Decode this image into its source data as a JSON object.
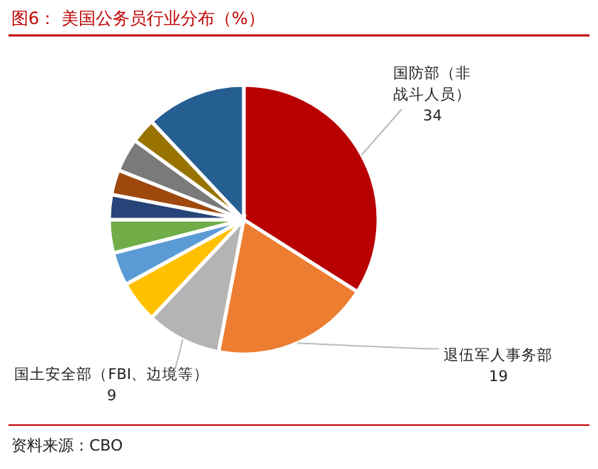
{
  "chart_data": {
    "type": "pie",
    "title": "图6：  美国公务员行业分布（%）",
    "categories": [
      "国防部（非战斗人员）",
      "退伍军人事务部",
      "国土安全部（FBI、边境等）",
      null,
      null,
      null,
      null,
      null,
      null,
      null,
      null
    ],
    "values": [
      34,
      19,
      9,
      5,
      4,
      4,
      3,
      3,
      4,
      3,
      12
    ],
    "value_labels": [
      "34",
      "19",
      "9",
      null,
      null,
      null,
      null,
      null,
      null,
      null,
      null
    ],
    "colors": [
      "#b80000",
      "#ed7d31",
      "#b4b4b4",
      "#ffc000",
      "#5b9bd5",
      "#70ad47",
      "#264478",
      "#9e480e",
      "#7a7a7a",
      "#997300",
      "#255e91"
    ],
    "annotations": [
      "资料来源：CBO"
    ]
  }
}
